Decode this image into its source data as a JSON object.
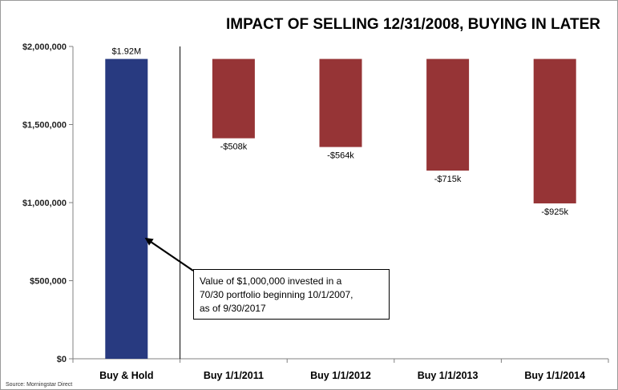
{
  "chart_data": {
    "type": "bar",
    "title": "IMPACT OF SELLING 12/31/2008, BUYING IN LATER",
    "xlabel": "",
    "ylabel": "",
    "ylim": [
      0,
      2000000
    ],
    "yticks": [
      0,
      500000,
      1000000,
      1500000,
      2000000
    ],
    "ytick_labels": [
      "$0",
      "$500,000",
      "$1,000,000",
      "$1,500,000",
      "$2,000,000"
    ],
    "grid": false,
    "categories": [
      "Buy & Hold",
      "Buy 1/1/2011",
      "Buy 1/1/2012",
      "Buy 1/1/2013",
      "Buy 1/1/2014"
    ],
    "bars": [
      {
        "category": "Buy & Hold",
        "base": 0,
        "top": 1920000,
        "label": "$1.92M",
        "color": "#283a80"
      },
      {
        "category": "Buy 1/1/2011",
        "base": 1412000,
        "top": 1920000,
        "label": "-$508k",
        "color": "#963436"
      },
      {
        "category": "Buy 1/1/2012",
        "base": 1356000,
        "top": 1920000,
        "label": "-$564k",
        "color": "#963436"
      },
      {
        "category": "Buy 1/1/2013",
        "base": 1205000,
        "top": 1920000,
        "label": "-$715k",
        "color": "#963436"
      },
      {
        "category": "Buy 1/1/2014",
        "base": 995000,
        "top": 1920000,
        "label": "-$925k",
        "color": "#963436"
      }
    ],
    "annotation": {
      "lines": [
        "Value of  $1,000,000  invested in a",
        "70/30  portfolio beginning 10/1/2007,",
        "as of 9/30/2017"
      ],
      "points_to": "Buy & Hold"
    },
    "source": "Source:  Morningstar Direct"
  }
}
